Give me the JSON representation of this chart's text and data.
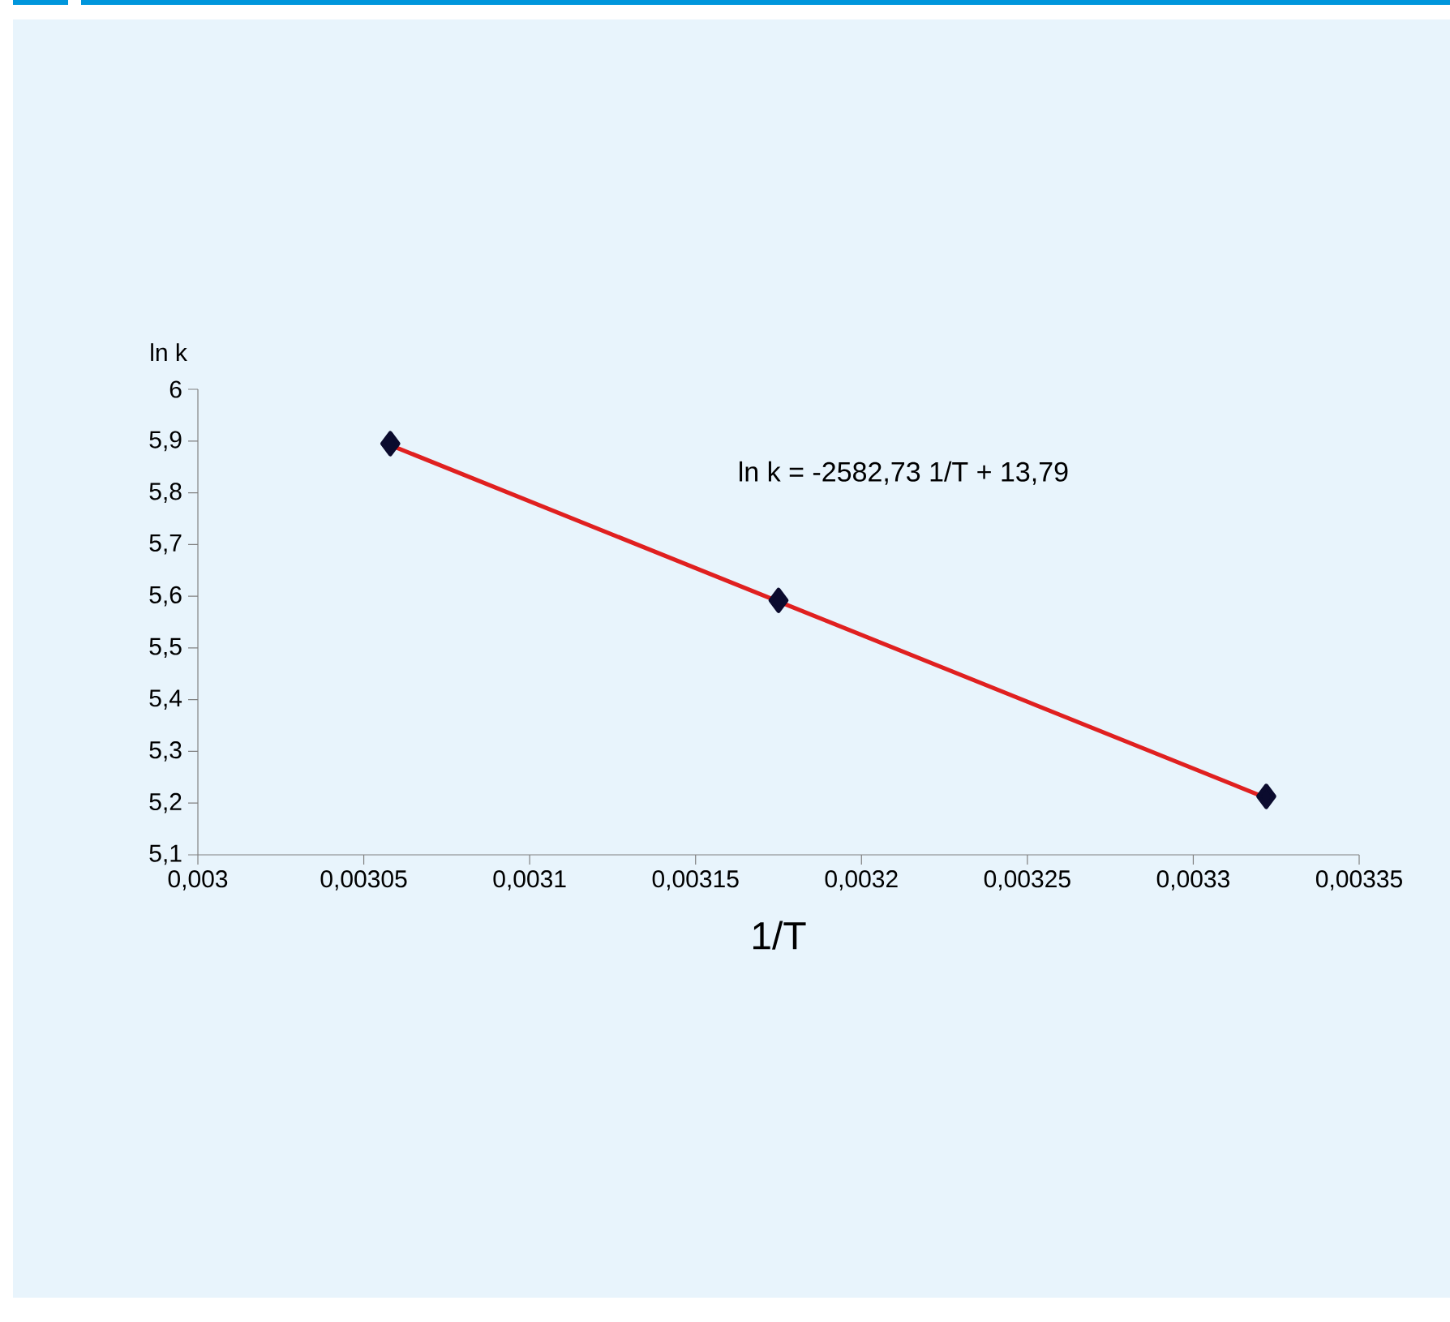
{
  "chart_data": {
    "type": "scatter",
    "xlabel": "1/T",
    "ylabel": "ln k",
    "annotations": [
      "ln k = -2582,73 1/T + 13,79"
    ],
    "series": [
      {
        "color": "#0b0b2e",
        "marker": "diamond",
        "x": [
          0.003058,
          0.003175,
          0.003322
        ],
        "values": [
          5.895,
          5.592,
          5.213
        ]
      },
      {
        "type": "line",
        "color": "#e02020",
        "marker": "none",
        "x": [
          0.003058,
          0.003322
        ],
        "values": [
          5.892,
          5.21
        ]
      }
    ],
    "xlim": [
      0.003,
      0.00335
    ],
    "xticks": [
      {
        "value": 0.003,
        "label": "0,003"
      },
      {
        "value": 0.00305,
        "label": "0,00305"
      },
      {
        "value": 0.0031,
        "label": "0,0031"
      },
      {
        "value": 0.00315,
        "label": "0,00315"
      },
      {
        "value": 0.0032,
        "label": "0,0032"
      },
      {
        "value": 0.00325,
        "label": "0,00325"
      },
      {
        "value": 0.0033,
        "label": "0,0033"
      },
      {
        "value": 0.00335,
        "label": "0,00335"
      }
    ],
    "ylim": [
      5.1,
      6
    ],
    "yticks": [
      {
        "value": 5.1,
        "label": "5,1"
      },
      {
        "value": 5.2,
        "label": "5,2"
      },
      {
        "value": 5.3,
        "label": "5,3"
      },
      {
        "value": 5.4,
        "label": "5,4"
      },
      {
        "value": 5.5,
        "label": "5,5"
      },
      {
        "value": 5.6,
        "label": "5,6"
      },
      {
        "value": 5.7,
        "label": "5,7"
      },
      {
        "value": 5.8,
        "label": "5,8"
      },
      {
        "value": 5.9,
        "label": "5,9"
      },
      {
        "value": 6,
        "label": "6"
      }
    ],
    "grid": false
  }
}
